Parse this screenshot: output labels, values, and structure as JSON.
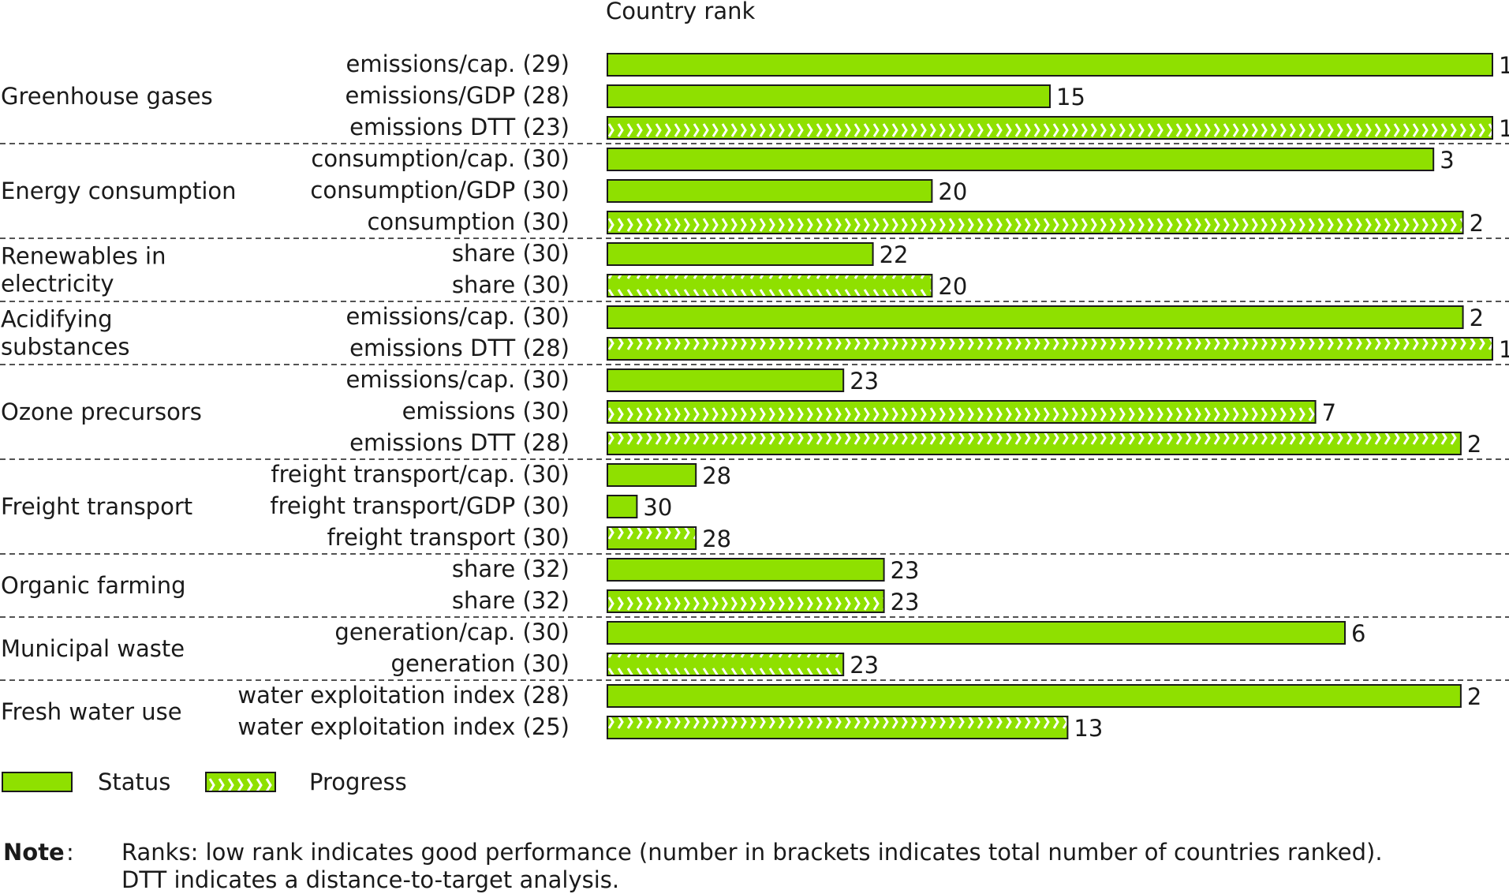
{
  "chart_data": {
    "type": "bar",
    "orientation": "horizontal",
    "title": "Country rank",
    "colors": {
      "bar_fill": "#8fe000",
      "bar_stroke": "#1a1a1a",
      "chevron": "#ffffff"
    },
    "groups": [
      {
        "name": "Greenhouse gases",
        "rows": [
          {
            "label": "emissions/cap. (29)",
            "total": 29,
            "rank": 1,
            "kind": "Status"
          },
          {
            "label": "emissions/GDP (28)",
            "total": 28,
            "rank": 15,
            "kind": "Status"
          },
          {
            "label": "emissions DTT (23)",
            "total": 23,
            "rank": 1,
            "kind": "Progress"
          }
        ]
      },
      {
        "name": "Energy consumption",
        "rows": [
          {
            "label": "consumption/cap. (30)",
            "total": 30,
            "rank": 3,
            "kind": "Status"
          },
          {
            "label": "consumption/GDP (30)",
            "total": 30,
            "rank": 20,
            "kind": "Status"
          },
          {
            "label": "consumption (30)",
            "total": 30,
            "rank": 2,
            "kind": "Progress"
          }
        ]
      },
      {
        "name": "Renewables in electricity",
        "rows": [
          {
            "label": "share (30)",
            "total": 30,
            "rank": 22,
            "kind": "Status"
          },
          {
            "label": "share (30)",
            "total": 30,
            "rank": 20,
            "kind": "Progress"
          }
        ]
      },
      {
        "name": "Acidifying substances",
        "rows": [
          {
            "label": "emissions/cap. (30)",
            "total": 30,
            "rank": 2,
            "kind": "Status"
          },
          {
            "label": "emissions DTT (28)",
            "total": 28,
            "rank": 1,
            "kind": "Progress"
          }
        ]
      },
      {
        "name": "Ozone precursors",
        "rows": [
          {
            "label": "emissions/cap. (30)",
            "total": 30,
            "rank": 23,
            "kind": "Status"
          },
          {
            "label": "emissions (30)",
            "total": 30,
            "rank": 7,
            "kind": "Progress"
          },
          {
            "label": "emissions DTT (28)",
            "total": 28,
            "rank": 2,
            "kind": "Progress"
          }
        ]
      },
      {
        "name": "Freight transport",
        "rows": [
          {
            "label": "freight transport/cap. (30)",
            "total": 30,
            "rank": 28,
            "kind": "Status"
          },
          {
            "label": "freight transport/GDP (30)",
            "total": 30,
            "rank": 30,
            "kind": "Status"
          },
          {
            "label": "freight transport (30)",
            "total": 30,
            "rank": 28,
            "kind": "Progress"
          }
        ]
      },
      {
        "name": "Organic farming",
        "rows": [
          {
            "label": "share (32)",
            "total": 32,
            "rank": 23,
            "kind": "Status"
          },
          {
            "label": "share (32)",
            "total": 32,
            "rank": 23,
            "kind": "Progress"
          }
        ]
      },
      {
        "name": "Municipal waste",
        "rows": [
          {
            "label": "generation/cap. (30)",
            "total": 30,
            "rank": 6,
            "kind": "Status"
          },
          {
            "label": "generation (30)",
            "total": 30,
            "rank": 23,
            "kind": "Progress"
          }
        ]
      },
      {
        "name": "Fresh water use",
        "rows": [
          {
            "label": "water exploitation index (28)",
            "total": 28,
            "rank": 2,
            "kind": "Status"
          },
          {
            "label": "water exploitation index (25)",
            "total": 25,
            "rank": 13,
            "kind": "Progress"
          }
        ]
      }
    ],
    "legend": [
      {
        "name": "Status",
        "pattern": "solid"
      },
      {
        "name": "Progress",
        "pattern": "chevron"
      }
    ],
    "legend_position": "bottom-left",
    "grid": false
  },
  "note": {
    "label": "Note",
    "colon": ":",
    "lines": [
      "Ranks: low rank indicates good performance (number in brackets indicates total number of countries ranked).",
      "DTT indicates a distance-to-target analysis."
    ]
  }
}
